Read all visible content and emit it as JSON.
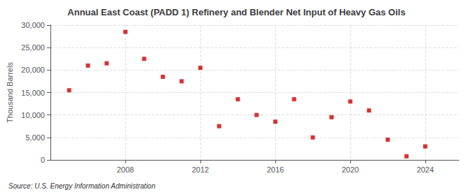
{
  "chart_data": {
    "type": "scatter",
    "title": "Annual East Coast (PADD 1) Refinery and Blender Net Input of Heavy Gas Oils",
    "ylabel": "Thousand Barrels",
    "source": "Source: U.S. Energy Information Administration",
    "x": [
      2005,
      2006,
      2007,
      2008,
      2009,
      2010,
      2011,
      2012,
      2013,
      2014,
      2015,
      2016,
      2017,
      2018,
      2019,
      2020,
      2021,
      2022,
      2023,
      2024
    ],
    "values": [
      15500,
      21000,
      21500,
      28500,
      22500,
      18500,
      17500,
      20500,
      7500,
      13500,
      10000,
      8500,
      13500,
      5000,
      9500,
      13000,
      11000,
      4500,
      800,
      3000
    ],
    "color": "#cc0000",
    "marker": "square",
    "xlim": [
      2004.0,
      2025.8
    ],
    "xticks": [
      2008,
      2012,
      2016,
      2020,
      2024
    ],
    "ylim": [
      0,
      30000
    ],
    "yticks": [
      0,
      {
        "value": 5000,
        "label": "5,000"
      },
      {
        "value": 10000,
        "label": "10,000"
      },
      {
        "value": 15000,
        "label": "15,000"
      },
      {
        "value": 20000,
        "label": "20,000"
      },
      {
        "value": 25000,
        "label": "25,000"
      },
      {
        "value": 30000,
        "label": "30,000"
      }
    ],
    "grid": true
  }
}
